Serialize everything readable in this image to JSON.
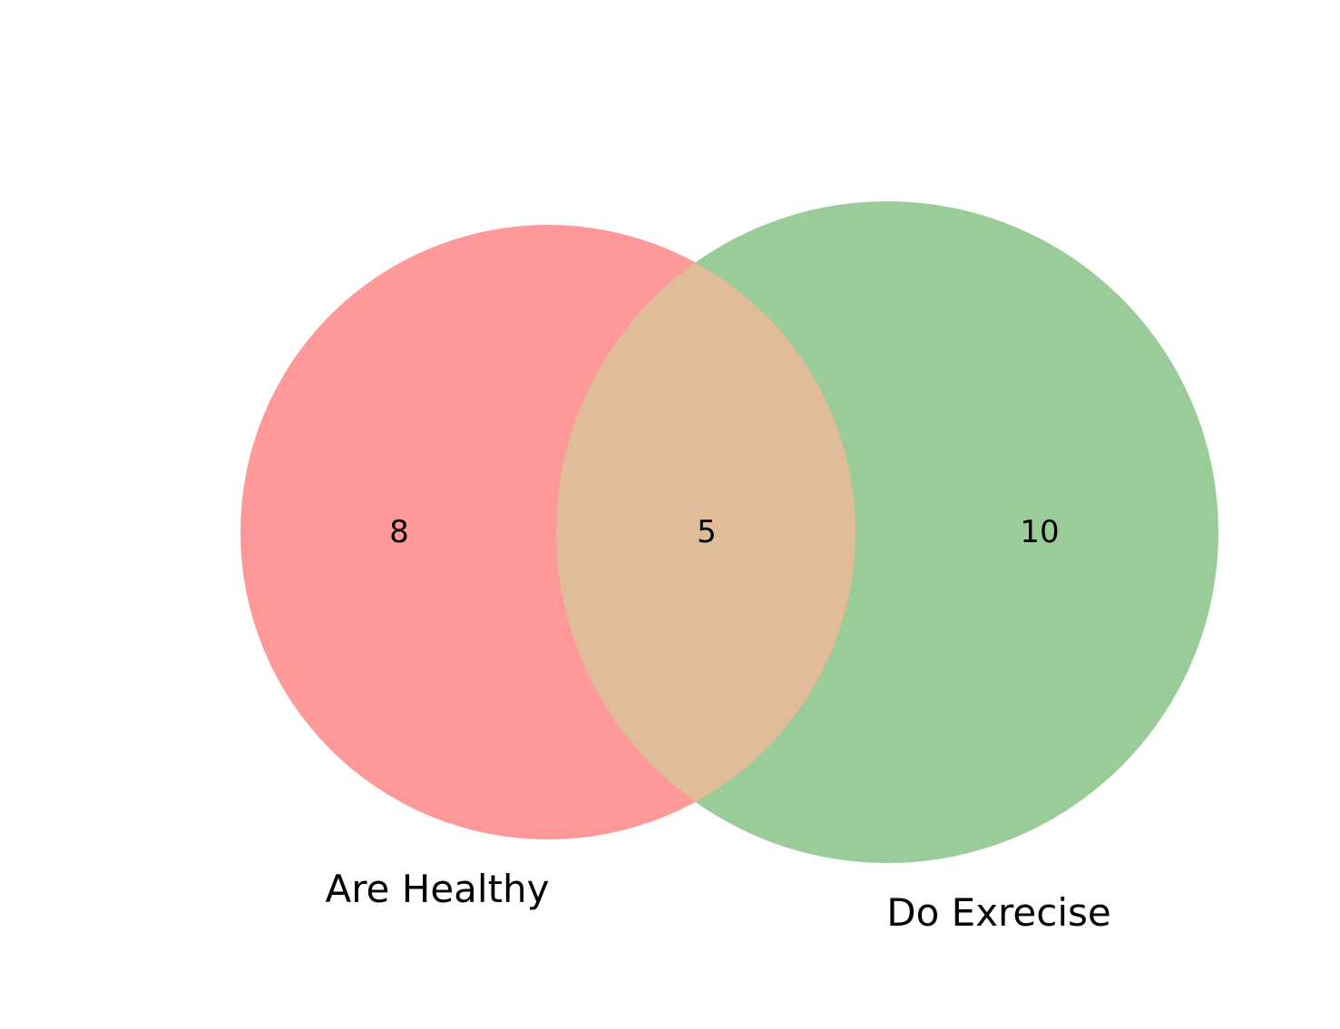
{
  "diagram": {
    "type": "venn2",
    "sets": [
      {
        "label": "Are Healthy",
        "color": "#ff9999"
      },
      {
        "label": "Do Exrecise",
        "color": "#99cc99"
      }
    ],
    "intersection_color": "#e0bc99",
    "regions": {
      "only_a": "8",
      "both": "5",
      "only_b": "10"
    }
  }
}
